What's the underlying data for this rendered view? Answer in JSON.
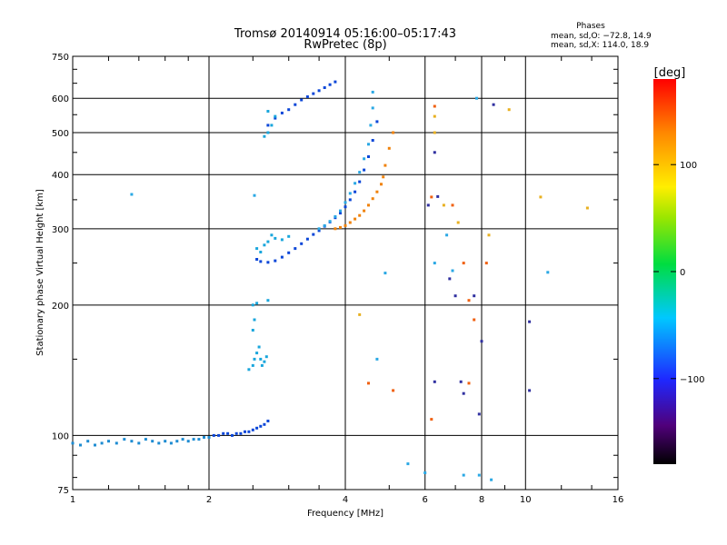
{
  "chart_data": {
    "type": "scatter",
    "title": "Tromsø 20140914 05:16:00–05:17:43",
    "subtitle": "RwPretec (8p)",
    "stats": {
      "header": "Phases",
      "line_o": "mean, sd,O: −72.8, 14.9",
      "line_x": "mean, sd,X: 114.0, 18.9"
    },
    "xlabel": "Frequency [MHz]",
    "ylabel": "Stationary phase Virtual Height [km]",
    "x_scale": "log",
    "y_scale": "log",
    "xlim": [
      1,
      16
    ],
    "ylim": [
      75,
      750
    ],
    "x_ticks": [
      1,
      2,
      4,
      6,
      8,
      10,
      16
    ],
    "x_tick_labels": [
      "1",
      "2",
      "4",
      "6",
      "8",
      "10",
      "16"
    ],
    "y_ticks": [
      75,
      100,
      200,
      300,
      400,
      500,
      600,
      750
    ],
    "y_tick_labels": [
      "75",
      "100",
      "200",
      "300",
      "400",
      "500",
      "600",
      "750"
    ],
    "grid": true,
    "colorbar": {
      "label": "[deg]",
      "range": [
        -180,
        180
      ],
      "ticks": [
        100,
        0,
        -100
      ],
      "tick_labels": [
        "100",
        "0",
        "−100"
      ]
    },
    "series": [
      {
        "color": "#1e8cd2",
        "points": [
          [
            1.0,
            96
          ],
          [
            1.04,
            95
          ],
          [
            1.08,
            97
          ],
          [
            1.12,
            95
          ],
          [
            1.16,
            96
          ],
          [
            1.2,
            97
          ],
          [
            1.25,
            96
          ],
          [
            1.3,
            98
          ],
          [
            1.35,
            97
          ],
          [
            1.4,
            96
          ],
          [
            1.45,
            98
          ],
          [
            1.5,
            97
          ],
          [
            1.55,
            96
          ],
          [
            1.6,
            97
          ],
          [
            1.65,
            96
          ],
          [
            1.7,
            97
          ],
          [
            1.75,
            98
          ],
          [
            1.8,
            97
          ],
          [
            1.85,
            98
          ],
          [
            1.9,
            98
          ],
          [
            1.95,
            99
          ],
          [
            2.0,
            99
          ]
        ]
      },
      {
        "color": "#0a46d8",
        "points": [
          [
            2.05,
            100
          ],
          [
            2.1,
            100
          ],
          [
            2.15,
            101
          ],
          [
            2.2,
            101
          ],
          [
            2.25,
            100
          ],
          [
            2.3,
            101
          ],
          [
            2.35,
            101
          ],
          [
            2.4,
            102
          ],
          [
            2.45,
            102
          ],
          [
            2.5,
            103
          ],
          [
            2.55,
            104
          ],
          [
            2.6,
            105
          ],
          [
            2.65,
            106
          ],
          [
            2.7,
            108
          ]
        ]
      },
      {
        "color": "#19a6dc",
        "points": [
          [
            2.45,
            142
          ],
          [
            2.5,
            145
          ],
          [
            2.52,
            150
          ],
          [
            2.55,
            155
          ],
          [
            2.58,
            160
          ],
          [
            2.6,
            150
          ],
          [
            2.62,
            145
          ],
          [
            2.65,
            148
          ],
          [
            2.68,
            152
          ],
          [
            2.5,
            175
          ],
          [
            2.52,
            185
          ],
          [
            2.5,
            200
          ],
          [
            2.55,
            202
          ],
          [
            2.7,
            205
          ]
        ]
      },
      {
        "color": "#0a46d8",
        "points": [
          [
            2.55,
            255
          ],
          [
            2.6,
            252
          ],
          [
            2.7,
            251
          ],
          [
            2.8,
            253
          ],
          [
            2.9,
            258
          ],
          [
            3.0,
            264
          ],
          [
            3.1,
            270
          ],
          [
            3.2,
            277
          ],
          [
            3.3,
            284
          ],
          [
            3.4,
            291
          ],
          [
            3.5,
            297
          ],
          [
            3.6,
            304
          ],
          [
            3.7,
            311
          ],
          [
            3.8,
            318
          ],
          [
            3.9,
            326
          ],
          [
            4.0,
            337
          ],
          [
            4.1,
            350
          ],
          [
            4.2,
            365
          ],
          [
            4.3,
            385
          ],
          [
            4.4,
            410
          ],
          [
            4.5,
            440
          ],
          [
            4.6,
            480
          ],
          [
            4.7,
            530
          ]
        ]
      },
      {
        "color": "#19a6dc",
        "points": [
          [
            2.55,
            270
          ],
          [
            2.6,
            265
          ],
          [
            2.65,
            275
          ],
          [
            2.7,
            280
          ],
          [
            2.75,
            290
          ],
          [
            2.8,
            285
          ],
          [
            2.9,
            283
          ],
          [
            3.0,
            288
          ]
        ]
      },
      {
        "color": "#2aa8e4",
        "points": [
          [
            3.5,
            300
          ],
          [
            3.6,
            305
          ],
          [
            3.7,
            312
          ],
          [
            3.8,
            320
          ],
          [
            3.9,
            330
          ],
          [
            4.0,
            345
          ],
          [
            4.1,
            362
          ],
          [
            4.2,
            382
          ],
          [
            4.3,
            405
          ],
          [
            4.4,
            435
          ],
          [
            4.5,
            470
          ],
          [
            4.55,
            520
          ],
          [
            4.6,
            570
          ],
          [
            4.6,
            620
          ]
        ]
      },
      {
        "color": "#f0820a",
        "points": [
          [
            3.8,
            300
          ],
          [
            3.9,
            302
          ],
          [
            4.0,
            305
          ],
          [
            4.1,
            310
          ],
          [
            4.2,
            316
          ],
          [
            4.3,
            322
          ],
          [
            4.4,
            330
          ],
          [
            4.5,
            340
          ],
          [
            4.6,
            352
          ],
          [
            4.7,
            365
          ],
          [
            4.8,
            380
          ],
          [
            4.85,
            395
          ],
          [
            4.9,
            420
          ],
          [
            5.0,
            460
          ],
          [
            5.1,
            500
          ]
        ]
      },
      {
        "color": "#0a46d8",
        "points": [
          [
            2.7,
            520
          ],
          [
            2.8,
            540
          ],
          [
            2.9,
            555
          ],
          [
            3.0,
            565
          ],
          [
            3.1,
            580
          ],
          [
            3.2,
            595
          ],
          [
            3.3,
            605
          ],
          [
            3.4,
            615
          ],
          [
            3.5,
            625
          ],
          [
            3.6,
            635
          ],
          [
            3.7,
            645
          ],
          [
            3.8,
            655
          ]
        ]
      },
      {
        "color": "#19a6dc",
        "points": [
          [
            2.65,
            490
          ],
          [
            2.7,
            500
          ],
          [
            2.75,
            520
          ],
          [
            2.7,
            560
          ],
          [
            2.8,
            545
          ]
        ]
      },
      {
        "color": "#e8b020",
        "points": [
          [
            6.3,
            545
          ],
          [
            6.3,
            500
          ],
          [
            6.6,
            340
          ],
          [
            7.1,
            310
          ],
          [
            8.3,
            290
          ],
          [
            9.2,
            565
          ],
          [
            10.8,
            355
          ],
          [
            13.7,
            335
          ],
          [
            4.3,
            190
          ]
        ]
      },
      {
        "color": "#f06010",
        "points": [
          [
            6.3,
            575
          ],
          [
            6.2,
            355
          ],
          [
            6.9,
            340
          ],
          [
            7.3,
            250
          ],
          [
            7.5,
            205
          ],
          [
            7.7,
            185
          ],
          [
            8.2,
            250
          ],
          [
            4.5,
            132
          ],
          [
            5.1,
            127
          ],
          [
            6.2,
            109
          ],
          [
            7.5,
            132
          ]
        ]
      },
      {
        "color": "#2aa8e4",
        "points": [
          [
            1.35,
            360
          ],
          [
            2.52,
            358
          ],
          [
            4.9,
            237
          ],
          [
            4.7,
            150
          ],
          [
            5.5,
            86
          ],
          [
            6.3,
            250
          ],
          [
            6.7,
            290
          ],
          [
            6.9,
            240
          ],
          [
            7.3,
            81
          ],
          [
            7.9,
            81
          ],
          [
            8.4,
            79
          ],
          [
            11.2,
            238
          ],
          [
            7.8,
            600
          ],
          [
            6.0,
            82
          ]
        ]
      },
      {
        "color": "#3030a0",
        "points": [
          [
            6.3,
            450
          ],
          [
            6.4,
            356
          ],
          [
            6.8,
            230
          ],
          [
            7.0,
            210
          ],
          [
            7.7,
            210
          ],
          [
            8.0,
            165
          ],
          [
            7.3,
            125
          ],
          [
            7.9,
            112
          ],
          [
            8.5,
            580
          ],
          [
            10.2,
            183
          ],
          [
            10.2,
            127
          ],
          [
            6.3,
            133
          ],
          [
            7.2,
            133
          ],
          [
            6.1,
            340
          ]
        ]
      }
    ]
  }
}
